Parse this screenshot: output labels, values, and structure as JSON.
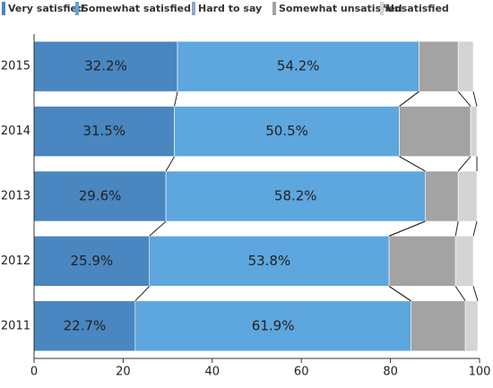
{
  "chart_data": {
    "type": "stacked-barh",
    "categories": [
      "2015",
      "2014",
      "2013",
      "2012",
      "2011"
    ],
    "series": [
      {
        "name": "Very satisfied",
        "color": "#4a86c0",
        "values": [
          32.2,
          31.5,
          29.6,
          25.9,
          22.7
        ],
        "value_labels": [
          "32.2%",
          "31.5%",
          "29.6%",
          "25.9%",
          "22.7%"
        ]
      },
      {
        "name": "Somewhat satisfied",
        "color": "#5ea6de",
        "values": [
          54.2,
          50.5,
          58.2,
          53.8,
          61.9
        ],
        "value_labels": [
          "54.2%",
          "50.5%",
          "58.2%",
          "53.8%",
          "61.9%"
        ]
      },
      {
        "name": "Hard to say",
        "color": "#8ea6cc",
        "values": [
          0,
          0,
          0,
          0,
          0
        ]
      },
      {
        "name": "Somewhat unsatisfied",
        "color": "#a3a3a3",
        "values": [
          8.8,
          16.0,
          7.4,
          14.9,
          12.2
        ]
      },
      {
        "name": "Unsatisfied",
        "color": "#d4d4d4",
        "values": [
          3.4,
          1.4,
          4.2,
          4.0,
          2.8
        ]
      }
    ],
    "xlim": [
      0,
      100
    ],
    "xticks": [
      0,
      20,
      40,
      60,
      80,
      100
    ]
  }
}
